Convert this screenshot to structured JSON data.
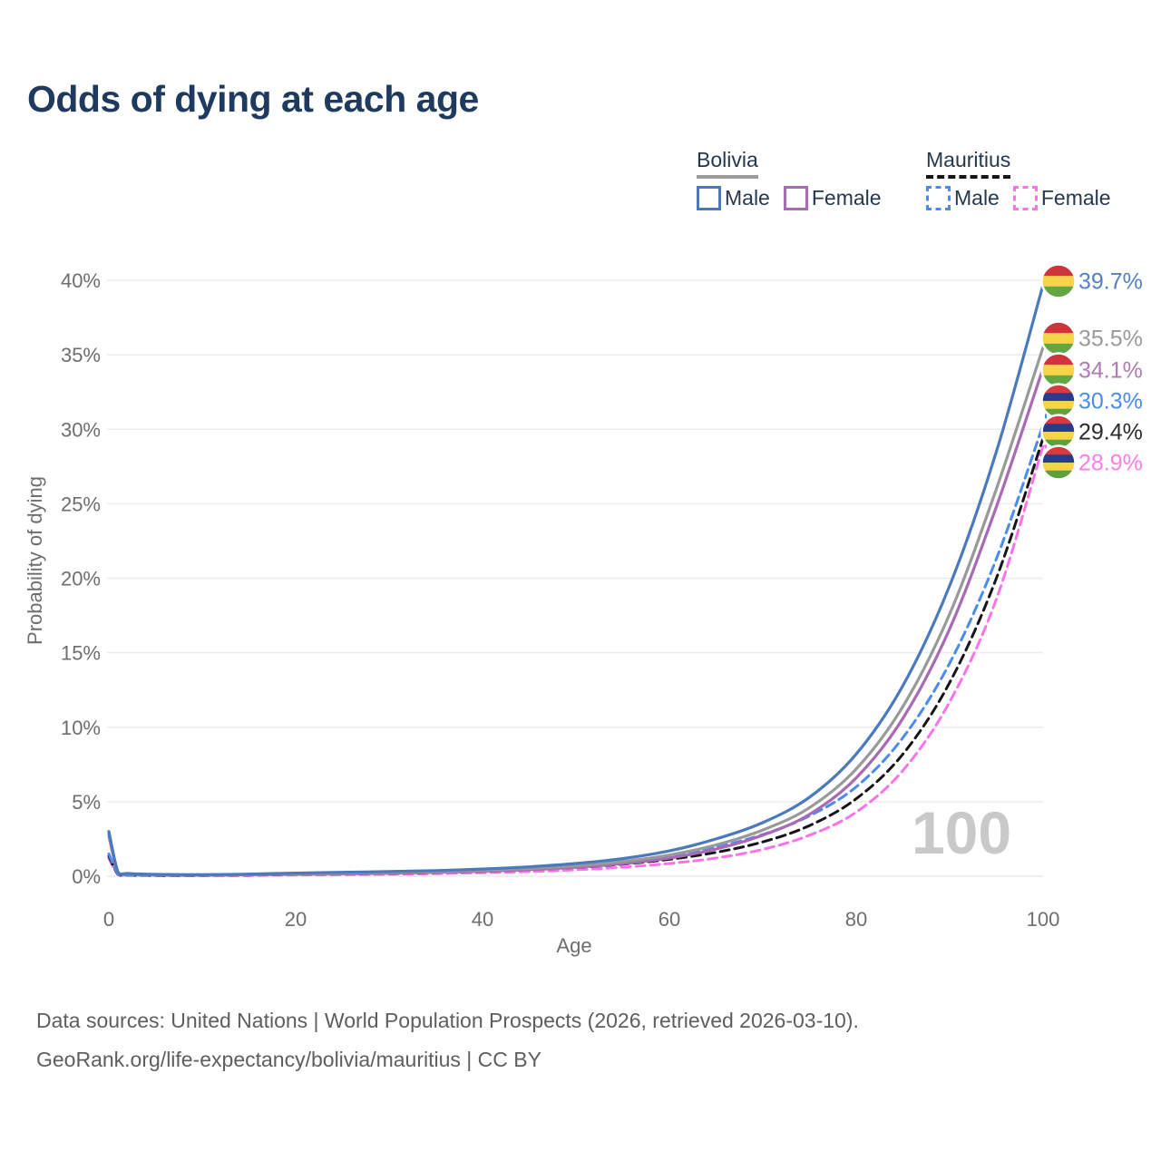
{
  "title": "Odds of dying at each age",
  "legend": {
    "groups": [
      {
        "name": "Bolivia",
        "underline_style": "solid",
        "underline_color": "#9a9a9a",
        "items": [
          {
            "label": "Male",
            "color": "#4a79bd",
            "dash": "solid"
          },
          {
            "label": "Female",
            "color": "#a86ab4",
            "dash": "solid"
          }
        ]
      },
      {
        "name": "Mauritius",
        "underline_style": "dashed",
        "underline_color": "#161616",
        "items": [
          {
            "label": "Male",
            "color": "#4b8bf0",
            "dash": "dashed"
          },
          {
            "label": "Female",
            "color": "#fb72ea",
            "dash": "dashed"
          }
        ]
      }
    ]
  },
  "flags": {
    "bolivia": [
      "#d0333b",
      "#f6d348",
      "#62a744"
    ],
    "mauritius": [
      "#d83a3f",
      "#2a3b8f",
      "#f6d348",
      "#5ba23e"
    ]
  },
  "footer": {
    "line1": "Data sources: United Nations | World Population Prospects (2026, retrieved 2026-03-10).",
    "line2": "GeoRank.org/life-expectancy/bolivia/mauritius | CC BY"
  },
  "chart_data": {
    "type": "line",
    "title": "Odds of dying at each age",
    "xlabel": "Age",
    "ylabel": "Probability of dying",
    "xlim": [
      0,
      100
    ],
    "ylim": [
      0,
      40
    ],
    "x_ticks": [
      0,
      20,
      40,
      60,
      80,
      100
    ],
    "y_ticks": [
      "0%",
      "5%",
      "10%",
      "15%",
      "20%",
      "25%",
      "30%",
      "35%",
      "40%"
    ],
    "grid": "horizontal",
    "legend_position": "top-right",
    "watermark": "100",
    "x": [
      0,
      1,
      2,
      5,
      10,
      15,
      20,
      25,
      30,
      35,
      40,
      45,
      50,
      55,
      60,
      65,
      70,
      75,
      80,
      85,
      90,
      95,
      100
    ],
    "series": [
      {
        "id": "bolivia-male",
        "name": "Bolivia male",
        "country": "bolivia",
        "sex": "male",
        "color": "#4a79bd",
        "label_color": "#5580c4",
        "dash": "solid",
        "end_label": "39.7%",
        "values": [
          3.0,
          0.25,
          0.18,
          0.12,
          0.1,
          0.14,
          0.21,
          0.26,
          0.31,
          0.38,
          0.48,
          0.63,
          0.85,
          1.18,
          1.7,
          2.5,
          3.6,
          5.3,
          8.2,
          12.8,
          19.5,
          28.5,
          39.7
        ]
      },
      {
        "id": "bolivia-both",
        "name": "Bolivia both sexes",
        "country": "bolivia",
        "sex": "both",
        "color": "#999999",
        "label_color": "#9a9a9a",
        "dash": "solid",
        "end_label": "35.5%",
        "values": [
          2.85,
          0.23,
          0.16,
          0.11,
          0.09,
          0.12,
          0.17,
          0.21,
          0.25,
          0.31,
          0.4,
          0.52,
          0.7,
          0.98,
          1.42,
          2.1,
          3.1,
          4.6,
          7.2,
          11.4,
          17.6,
          26.0,
          35.5
        ]
      },
      {
        "id": "bolivia-female",
        "name": "Bolivia female",
        "country": "bolivia",
        "sex": "female",
        "color": "#a86ab4",
        "label_color": "#b07ab2",
        "dash": "solid",
        "end_label": "34.1%",
        "values": [
          2.7,
          0.21,
          0.15,
          0.1,
          0.08,
          0.1,
          0.13,
          0.16,
          0.2,
          0.26,
          0.33,
          0.44,
          0.6,
          0.84,
          1.22,
          1.82,
          2.75,
          4.15,
          6.6,
          10.6,
          16.6,
          24.8,
          34.1
        ]
      },
      {
        "id": "mauritius-male",
        "name": "Mauritius male",
        "country": "mauritius",
        "sex": "male",
        "color": "#4b8bf0",
        "label_color": "#4b8bf0",
        "dash": "dashed",
        "end_label": "30.3%",
        "values": [
          1.5,
          0.12,
          0.08,
          0.06,
          0.06,
          0.1,
          0.15,
          0.19,
          0.24,
          0.31,
          0.41,
          0.55,
          0.74,
          1.0,
          1.38,
          1.95,
          2.8,
          4.05,
          6.0,
          9.3,
          14.3,
          21.3,
          30.3
        ]
      },
      {
        "id": "mauritius-both",
        "name": "Mauritius both sexes",
        "country": "mauritius",
        "sex": "both",
        "color": "#151515",
        "label_color": "#2b2b2b",
        "dash": "dashed",
        "end_label": "29.4%",
        "values": [
          1.35,
          0.11,
          0.07,
          0.05,
          0.05,
          0.08,
          0.12,
          0.15,
          0.19,
          0.25,
          0.33,
          0.44,
          0.59,
          0.81,
          1.13,
          1.6,
          2.3,
          3.4,
          5.2,
          8.2,
          13.0,
          20.0,
          29.4
        ]
      },
      {
        "id": "mauritius-female",
        "name": "Mauritius female",
        "country": "mauritius",
        "sex": "female",
        "color": "#fb72ea",
        "label_color": "#ff7de9",
        "dash": "dashed",
        "end_label": "28.9%",
        "values": [
          1.2,
          0.1,
          0.06,
          0.05,
          0.04,
          0.05,
          0.08,
          0.1,
          0.13,
          0.17,
          0.23,
          0.31,
          0.43,
          0.6,
          0.85,
          1.22,
          1.8,
          2.75,
          4.3,
          7.1,
          11.7,
          18.6,
          28.9
        ]
      }
    ]
  }
}
